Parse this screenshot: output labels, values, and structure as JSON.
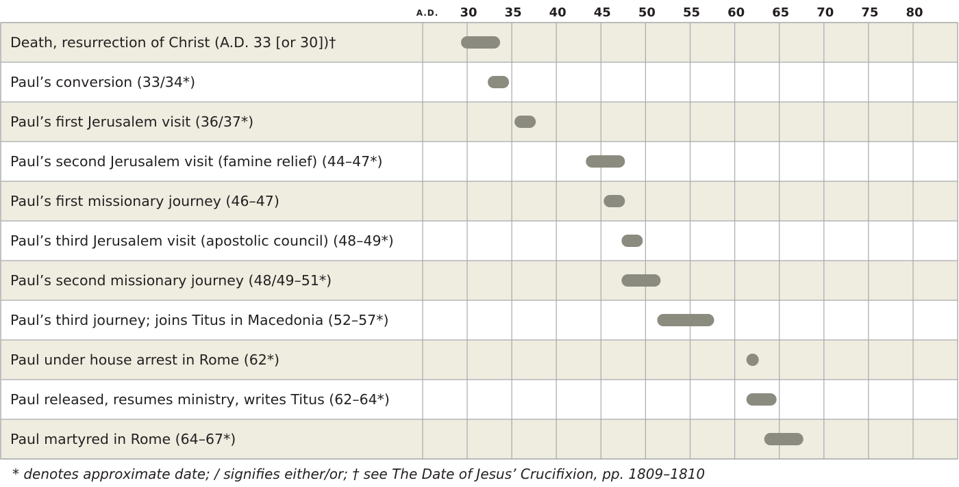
{
  "chart_data": {
    "type": "gantt-timeline",
    "era_label": "A.D.",
    "ticks": [
      30,
      35,
      40,
      45,
      50,
      55,
      60,
      65,
      70,
      75,
      80
    ],
    "tick_labels": [
      "30",
      "35",
      "40",
      "45",
      "50",
      "55",
      "60",
      "65",
      "70",
      "75",
      "80"
    ],
    "x_range": [
      25,
      82.5
    ],
    "events": [
      {
        "label": "Death, resurrection of Christ (A.D. 33 [or 30])†",
        "start": 30,
        "end": 33
      },
      {
        "label": "Paul’s conversion (33/34*)",
        "start": 33,
        "end": 34
      },
      {
        "label": "Paul’s first Jerusalem visit (36/37*)",
        "start": 36,
        "end": 37
      },
      {
        "label": "Paul’s second Jerusalem visit (famine relief) (44–47*)",
        "start": 44,
        "end": 47
      },
      {
        "label": "Paul’s first missionary journey (46–47)",
        "start": 46,
        "end": 47
      },
      {
        "label": "Paul’s third Jerusalem visit (apostolic council) (48–49*)",
        "start": 48,
        "end": 49
      },
      {
        "label": "Paul’s second missionary journey (48/49–51*)",
        "start": 48,
        "end": 51
      },
      {
        "label": "Paul’s third journey; joins Titus in Macedonia (52–57*)",
        "start": 52,
        "end": 57
      },
      {
        "label": "Paul under house arrest in Rome (62*)",
        "start": 62,
        "end": 62
      },
      {
        "label": "Paul released, resumes ministry, writes Titus (62–64*)",
        "start": 62,
        "end": 64
      },
      {
        "label": "Paul martyred in Rome (64–67*)",
        "start": 64,
        "end": 67
      }
    ],
    "footnote": "* denotes approximate date; / signifies either/or; † see The Date of Jesus’ Crucifixion, pp. 1809–1810"
  },
  "colors": {
    "shaded_row": "#efece0",
    "plain_row": "#ffffff",
    "grid": "#a7a9ac",
    "bar": "#8c8b7f",
    "text": "#231f20"
  }
}
